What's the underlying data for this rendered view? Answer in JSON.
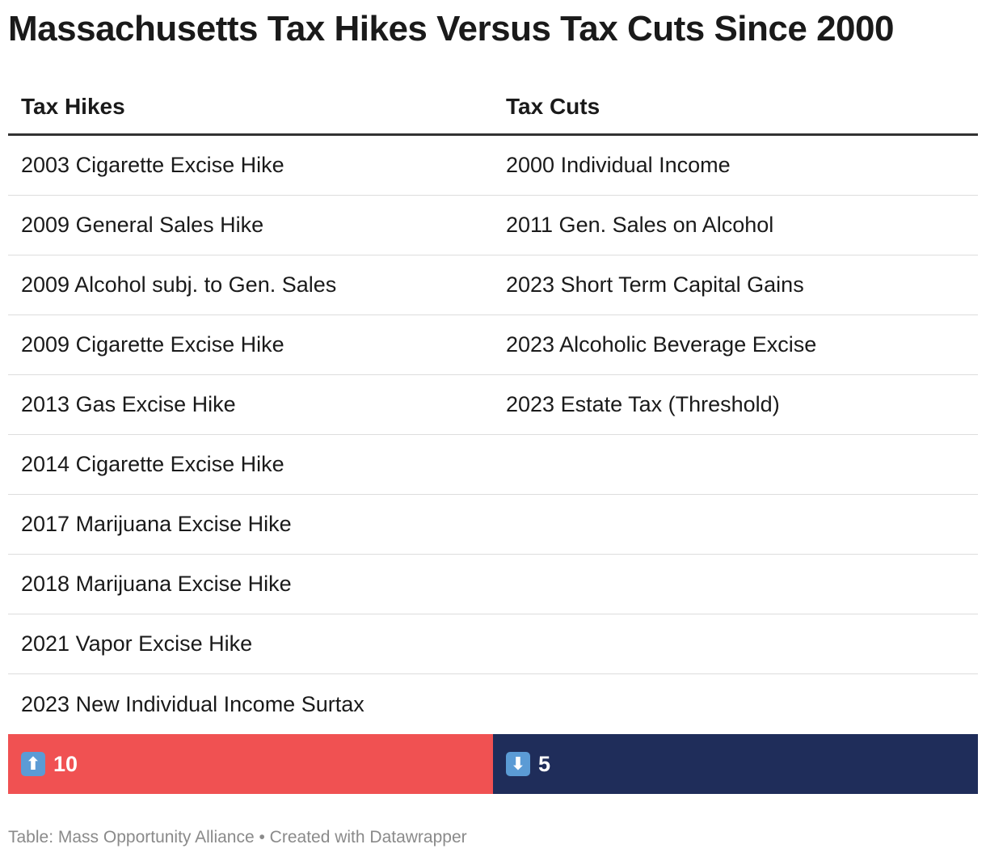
{
  "title": "Massachusetts Tax Hikes Versus Tax Cuts Since 2000",
  "chart_data": {
    "type": "table",
    "title": "Massachusetts Tax Hikes Versus Tax Cuts Since 2000",
    "columns": [
      "Tax Hikes",
      "Tax Cuts"
    ],
    "rows": [
      [
        "2003 Cigarette Excise Hike",
        "2000 Individual Income"
      ],
      [
        "2009 General Sales Hike",
        "2011 Gen. Sales on Alcohol"
      ],
      [
        "2009 Alcohol subj. to Gen. Sales",
        "2023 Short Term Capital Gains"
      ],
      [
        "2009 Cigarette Excise Hike",
        "2023 Alcoholic Beverage Excise"
      ],
      [
        "2013 Gas Excise Hike",
        "2023 Estate Tax (Threshold)"
      ],
      [
        "2014 Cigarette Excise Hike",
        ""
      ],
      [
        "2017 Marijuana Excise Hike",
        ""
      ],
      [
        "2018 Marijuana Excise Hike",
        ""
      ],
      [
        "2021 Vapor Excise Hike",
        ""
      ],
      [
        "2023 New Individual Income Surtax",
        ""
      ]
    ],
    "totals": {
      "hikes": {
        "icon": "up-arrow-icon",
        "glyph": "⬆",
        "value": "10",
        "color": "#f05152"
      },
      "cuts": {
        "icon": "down-arrow-icon",
        "glyph": "⬇",
        "value": "5",
        "color": "#1f2d5a"
      }
    }
  },
  "footer": "Table: Mass Opportunity Alliance • Created with Datawrapper"
}
